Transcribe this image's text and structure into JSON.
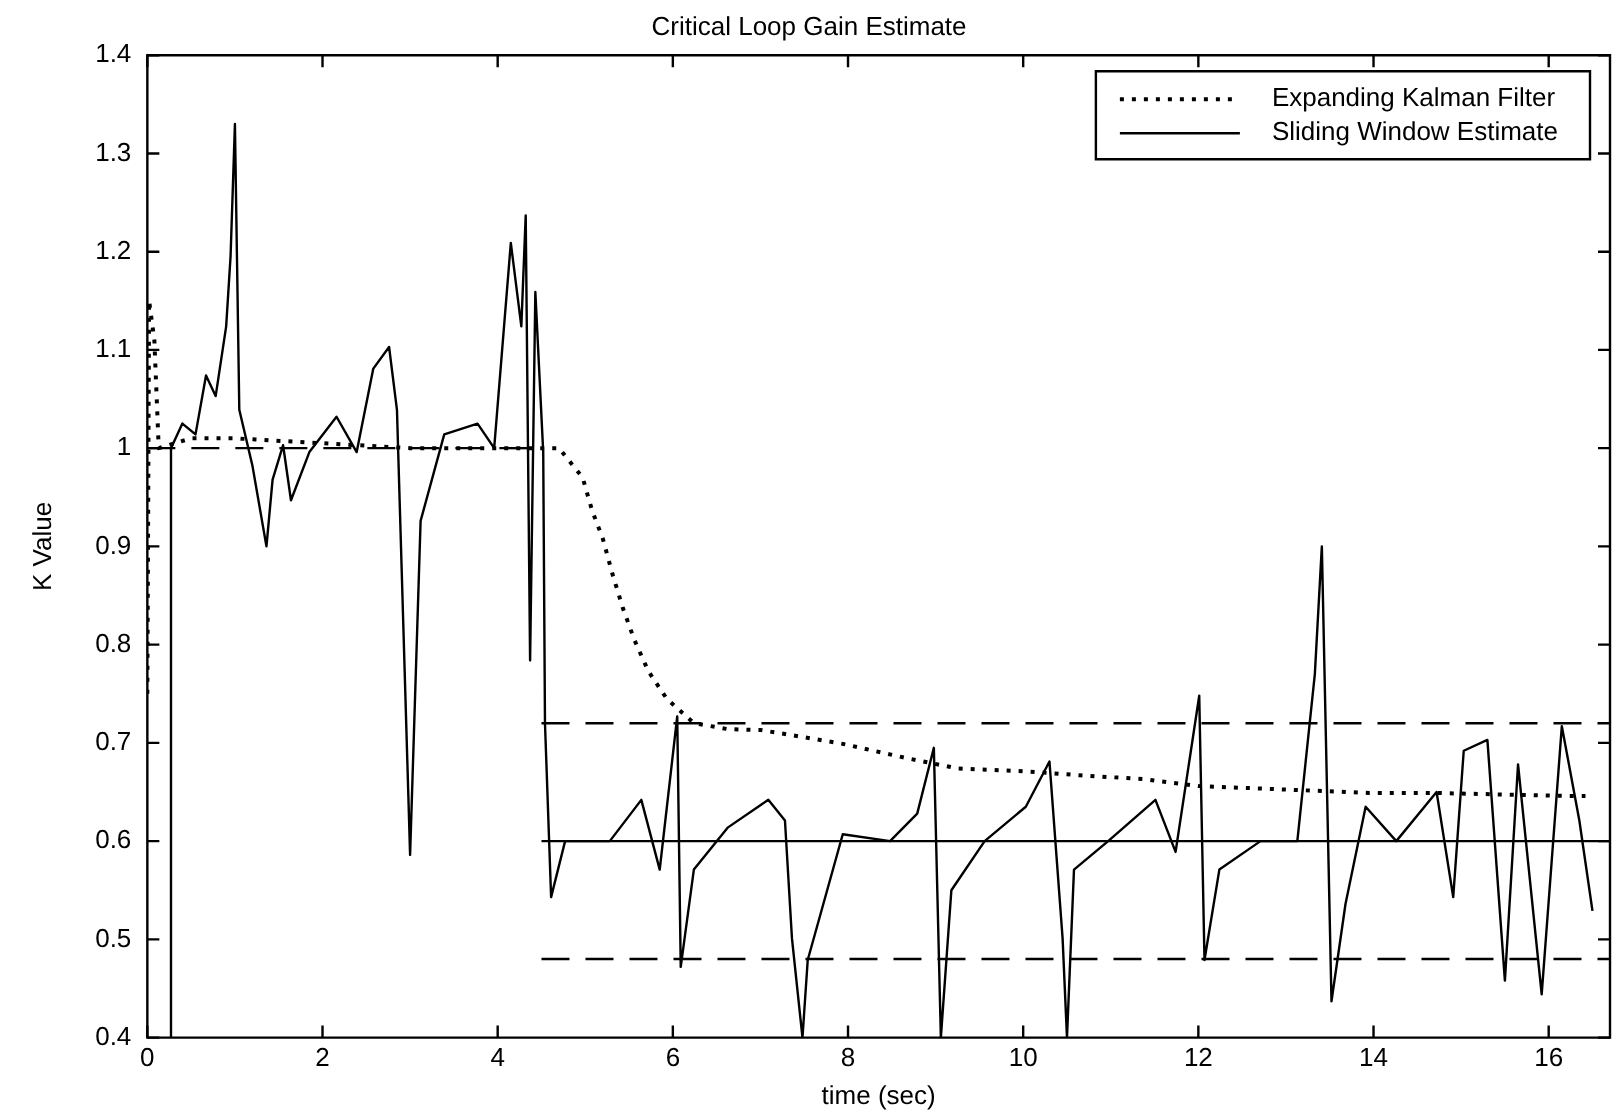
{
  "chart_data": {
    "type": "line",
    "title": "Critical Loop Gain Estimate",
    "xlabel": "time (sec)",
    "ylabel": "K Value",
    "xlim": [
      0,
      16.7
    ],
    "xticks": [
      0,
      2,
      4,
      6,
      8,
      10,
      12,
      14,
      16
    ],
    "ylim": [
      0.4,
      1.4
    ],
    "yticks": [
      0.4,
      0.5,
      0.6,
      0.7,
      0.8,
      0.9,
      1,
      1.1,
      1.2,
      1.3,
      1.4
    ],
    "grid": false,
    "legend": "top right",
    "marker": "none",
    "series": [
      {
        "name": "Expanding Kalman Filter",
        "color": "#000000",
        "line_style": "dotted",
        "x": [
          0,
          0.02,
          0.08,
          0.13,
          0.5,
          1.0,
          2.0,
          3.0,
          4.0,
          4.5,
          4.7,
          4.97,
          5.08,
          5.2,
          5.31,
          5.43,
          5.56,
          5.72,
          5.93,
          6.24,
          6.63,
          7.01,
          7.48,
          7.94,
          8.64,
          9.25,
          10.03,
          10.65,
          11.39,
          12.01,
          12.86,
          13.95,
          14.72,
          16.19,
          16.42
        ],
        "values": [
          0.75,
          1.15,
          1.11,
          1.0,
          1.01,
          1.01,
          1.005,
          1.0,
          1.0,
          1.0,
          1.0,
          0.97,
          0.936,
          0.908,
          0.872,
          0.837,
          0.805,
          0.773,
          0.745,
          0.72,
          0.714,
          0.713,
          0.706,
          0.699,
          0.685,
          0.674,
          0.671,
          0.667,
          0.663,
          0.656,
          0.653,
          0.649,
          0.649,
          0.646,
          0.646
        ]
      },
      {
        "name": "Sliding Window Estimate",
        "color": "#000000",
        "line_style": "solid",
        "x": [
          0.27,
          0.27,
          0.4,
          0.55,
          0.67,
          0.78,
          0.9,
          0.95,
          1.0,
          1.05,
          1.2,
          1.36,
          1.43,
          1.55,
          1.64,
          1.85,
          2.16,
          2.39,
          2.58,
          2.76,
          2.85,
          3.0,
          3.12,
          3.39,
          3.77,
          3.96,
          4.15,
          4.27,
          4.32,
          4.37,
          4.43,
          4.52,
          4.54,
          4.61,
          4.77,
          5.0,
          5.28,
          5.64,
          5.85,
          6.05,
          6.09,
          6.24,
          6.63,
          7.09,
          7.28,
          7.36,
          7.48,
          7.54,
          7.94,
          8.48,
          8.79,
          8.98,
          9.06,
          9.18,
          9.56,
          10.03,
          10.3,
          10.45,
          10.5,
          10.58,
          10.97,
          11.51,
          11.74,
          12.01,
          12.07,
          12.24,
          12.71,
          13.13,
          13.33,
          13.41,
          13.52,
          13.68,
          13.91,
          14.26,
          14.72,
          14.91,
          15.03,
          15.3,
          15.5,
          15.65,
          15.92,
          16.15,
          16.35,
          16.5
        ],
        "values": [
          0.4,
          1.0,
          1.025,
          1.014,
          1.074,
          1.053,
          1.124,
          1.195,
          1.33,
          1.039,
          0.982,
          0.9,
          0.968,
          1.003,
          0.947,
          0.996,
          1.032,
          0.996,
          1.081,
          1.103,
          1.039,
          0.586,
          0.926,
          1.014,
          1.025,
          1.0,
          1.209,
          1.124,
          1.237,
          0.784,
          1.159,
          0.996,
          0.72,
          0.543,
          0.6,
          0.6,
          0.6,
          0.642,
          0.571,
          0.727,
          0.472,
          0.571,
          0.614,
          0.642,
          0.621,
          0.501,
          0.4,
          0.479,
          0.607,
          0.6,
          0.628,
          0.695,
          0.4,
          0.55,
          0.6,
          0.635,
          0.681,
          0.501,
          0.4,
          0.571,
          0.6,
          0.642,
          0.589,
          0.748,
          0.479,
          0.571,
          0.6,
          0.6,
          0.77,
          0.9,
          0.437,
          0.536,
          0.635,
          0.6,
          0.65,
          0.543,
          0.692,
          0.703,
          0.458,
          0.678,
          0.444,
          0.717,
          0.621,
          0.529
        ]
      },
      {
        "color": "#000000",
        "line_style": "dashed",
        "x": [
          0,
          4.5
        ],
        "values": [
          1,
          1
        ]
      },
      {
        "color": "#000000",
        "line_style": "solid",
        "x": [
          4.5,
          16.7
        ],
        "values": [
          0.6,
          0.6
        ]
      },
      {
        "color": "#000000",
        "line_style": "dashed",
        "x": [
          4.5,
          16.7
        ],
        "values": [
          0.72,
          0.72
        ]
      },
      {
        "color": "#000000",
        "line_style": "dashed",
        "x": [
          4.5,
          16.7
        ],
        "values": [
          0.48,
          0.48
        ]
      }
    ]
  }
}
